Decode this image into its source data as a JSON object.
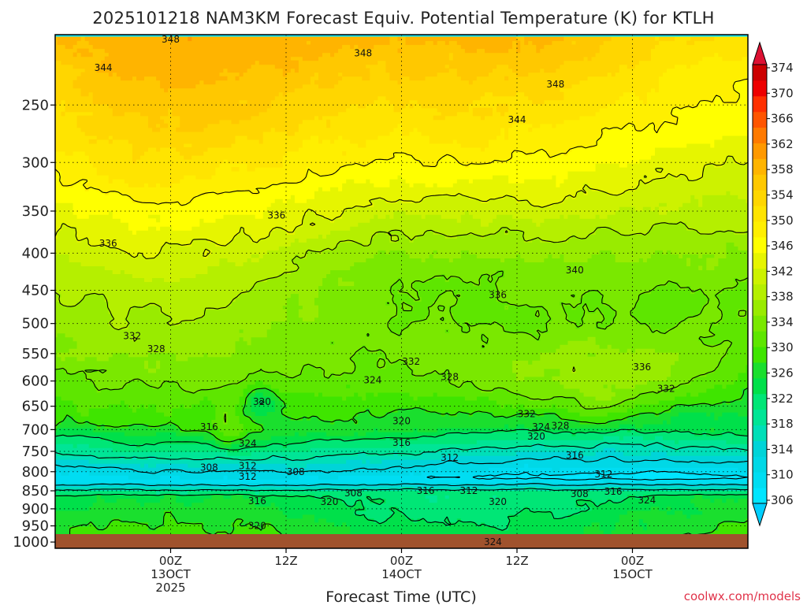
{
  "chart_data": {
    "type": "heatmap",
    "title": "2025101218 NAM3KM Forecast Equiv. Potential Temperature (K) for KTLH",
    "xlabel": "Forecast Time (UTC)",
    "credit": "coolwx.com/models",
    "y_levels": [
      "250",
      "300",
      "350",
      "400",
      "450",
      "500",
      "550",
      "600",
      "650",
      "700",
      "750",
      "800",
      "850",
      "900",
      "950",
      "1000"
    ],
    "y_scale": "log",
    "y_range_hPa": [
      200,
      1020
    ],
    "x_range_hours": [
      -12,
      60
    ],
    "x_ticks": [
      {
        "hour": 0,
        "lines": [
          "00Z",
          "13OCT",
          "2025"
        ]
      },
      {
        "hour": 12,
        "lines": [
          "12Z"
        ]
      },
      {
        "hour": 24,
        "lines": [
          "00Z",
          "14OCT"
        ]
      },
      {
        "hour": 36,
        "lines": [
          "12Z"
        ]
      },
      {
        "hour": 48,
        "lines": [
          "00Z",
          "15OCT"
        ]
      }
    ],
    "colorbar": {
      "ticks": [
        "306",
        "310",
        "314",
        "318",
        "322",
        "326",
        "330",
        "334",
        "338",
        "342",
        "346",
        "350",
        "354",
        "358",
        "362",
        "366",
        "370",
        "374"
      ],
      "levels": [
        306,
        308,
        310,
        312,
        314,
        316,
        318,
        320,
        322,
        324,
        326,
        328,
        330,
        332,
        334,
        336,
        338,
        340,
        342,
        344,
        346,
        348,
        352,
        356,
        360,
        364,
        368,
        372
      ],
      "colors": [
        "#00e5ff",
        "#00ddf2",
        "#00d8e6",
        "#00d4d8",
        "#00dfb8",
        "#00e596",
        "#00e676",
        "#00e04a",
        "#1adf2e",
        "#3fe500",
        "#5ee600",
        "#7ae800",
        "#99eb00",
        "#b5ef00",
        "#cdf200",
        "#e6f500",
        "#ffff00",
        "#ffef00",
        "#ffe400",
        "#ffd600",
        "#ffc800",
        "#ffb400",
        "#ff9900",
        "#ff7a00",
        "#ff5500",
        "#ff3000",
        "#ee0000",
        "#cc0000"
      ]
    },
    "contour_labels": [
      {
        "text": "348",
        "hour": 0,
        "p": 203
      },
      {
        "text": "348",
        "hour": 20,
        "p": 212
      },
      {
        "text": "348",
        "hour": 40,
        "p": 234
      },
      {
        "text": "344",
        "hour": -7,
        "p": 222
      },
      {
        "text": "344",
        "hour": 36,
        "p": 262
      },
      {
        "text": "336",
        "hour": 11,
        "p": 355
      },
      {
        "text": "336",
        "hour": -6.5,
        "p": 388
      },
      {
        "text": "340",
        "hour": 42,
        "p": 422
      },
      {
        "text": "336",
        "hour": 34,
        "p": 457
      },
      {
        "text": "332",
        "hour": -4,
        "p": 520
      },
      {
        "text": "328",
        "hour": -1.5,
        "p": 542
      },
      {
        "text": "332",
        "hour": 25,
        "p": 564
      },
      {
        "text": "328",
        "hour": 29,
        "p": 592
      },
      {
        "text": "324",
        "hour": 21,
        "p": 598
      },
      {
        "text": "336",
        "hour": 49,
        "p": 574
      },
      {
        "text": "332",
        "hour": 51.5,
        "p": 615
      },
      {
        "text": "332",
        "hour": 37,
        "p": 666
      },
      {
        "text": "320",
        "hour": 9.5,
        "p": 641
      },
      {
        "text": "324",
        "hour": 38.5,
        "p": 694
      },
      {
        "text": "328",
        "hour": 40.5,
        "p": 692
      },
      {
        "text": "316",
        "hour": 4,
        "p": 694
      },
      {
        "text": "320",
        "hour": 24,
        "p": 681
      },
      {
        "text": "320",
        "hour": 38,
        "p": 715
      },
      {
        "text": "324",
        "hour": 8,
        "p": 732
      },
      {
        "text": "316",
        "hour": 24,
        "p": 730
      },
      {
        "text": "312",
        "hour": 29,
        "p": 765
      },
      {
        "text": "316",
        "hour": 42,
        "p": 760
      },
      {
        "text": "308",
        "hour": 4,
        "p": 790
      },
      {
        "text": "312",
        "hour": 8,
        "p": 786
      },
      {
        "text": "312",
        "hour": 8,
        "p": 813
      },
      {
        "text": "308",
        "hour": 13,
        "p": 800
      },
      {
        "text": "312",
        "hour": 45,
        "p": 806
      },
      {
        "text": "308",
        "hour": 19,
        "p": 856
      },
      {
        "text": "316",
        "hour": 26.5,
        "p": 850
      },
      {
        "text": "312",
        "hour": 31,
        "p": 850
      },
      {
        "text": "308",
        "hour": 42.5,
        "p": 858
      },
      {
        "text": "316",
        "hour": 46,
        "p": 852
      },
      {
        "text": "316",
        "hour": 9,
        "p": 878
      },
      {
        "text": "320",
        "hour": 16.5,
        "p": 880
      },
      {
        "text": "320",
        "hour": 34,
        "p": 880
      },
      {
        "text": "324",
        "hour": 49.5,
        "p": 876
      },
      {
        "text": "320",
        "hour": 9,
        "p": 950
      },
      {
        "text": "324",
        "hour": 33.5,
        "p": 1000
      }
    ]
  }
}
